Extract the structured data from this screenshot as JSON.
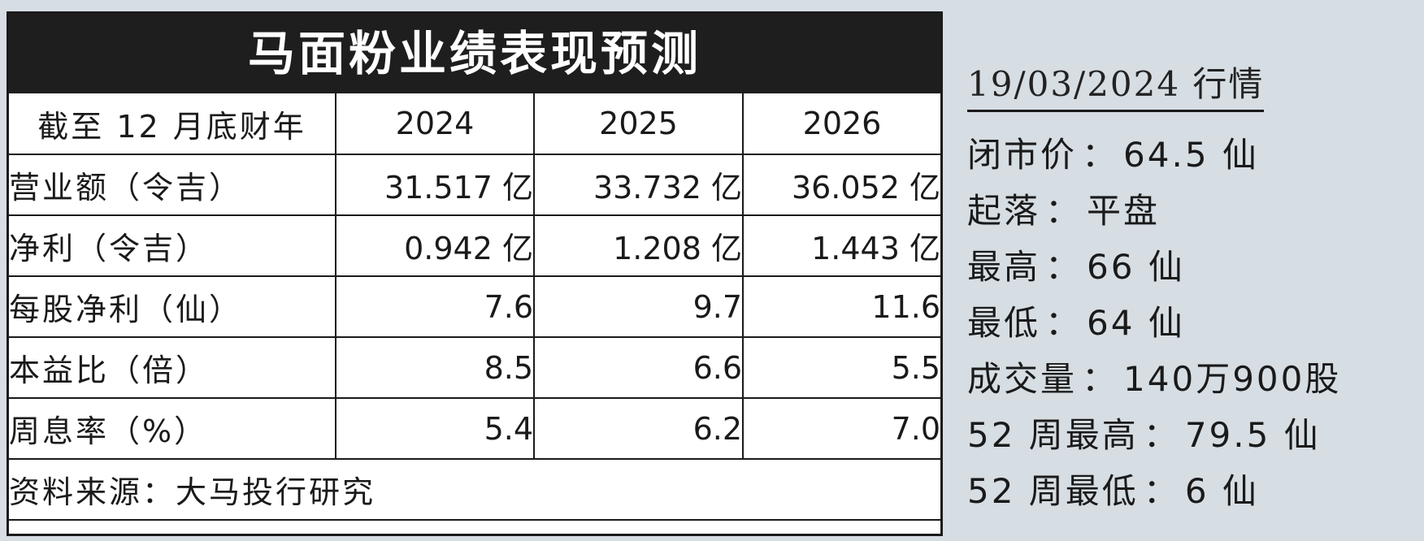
{
  "table": {
    "title": "马面粉业绩表现预测",
    "header": {
      "label": "截至 12 月底财年",
      "years": [
        "2024",
        "2025",
        "2026"
      ]
    },
    "rows": [
      {
        "label": "营业额（令吉）",
        "values": [
          "31.517 亿",
          "33.732 亿",
          "36.052 亿"
        ]
      },
      {
        "label": "净利（令吉）",
        "values": [
          "0.942 亿",
          "1.208 亿",
          "1.443 亿"
        ]
      },
      {
        "label": "每股净利（仙）",
        "values": [
          "7.6",
          "9.7",
          "11.6"
        ]
      },
      {
        "label": "本益比（倍）",
        "values": [
          "8.5",
          "6.6",
          "5.5"
        ]
      },
      {
        "label": "周息率（%）",
        "values": [
          "5.4",
          "6.2",
          "7.0"
        ]
      }
    ],
    "source": "资料来源：大马投行研究"
  },
  "quote": {
    "date_title": "19/03/2024 行情",
    "items": [
      {
        "label": "闭市价",
        "value": "64.5 仙"
      },
      {
        "label": "起落",
        "value": "平盘"
      },
      {
        "label": "最高",
        "value": "66 仙"
      },
      {
        "label": "最低",
        "value": "64 仙"
      },
      {
        "label": "成交量",
        "value": "140万900股"
      },
      {
        "label": "52 周最高",
        "value": "79.5 仙"
      },
      {
        "label": "52 周最低",
        "value": "6 仙"
      }
    ],
    "separator": "："
  }
}
